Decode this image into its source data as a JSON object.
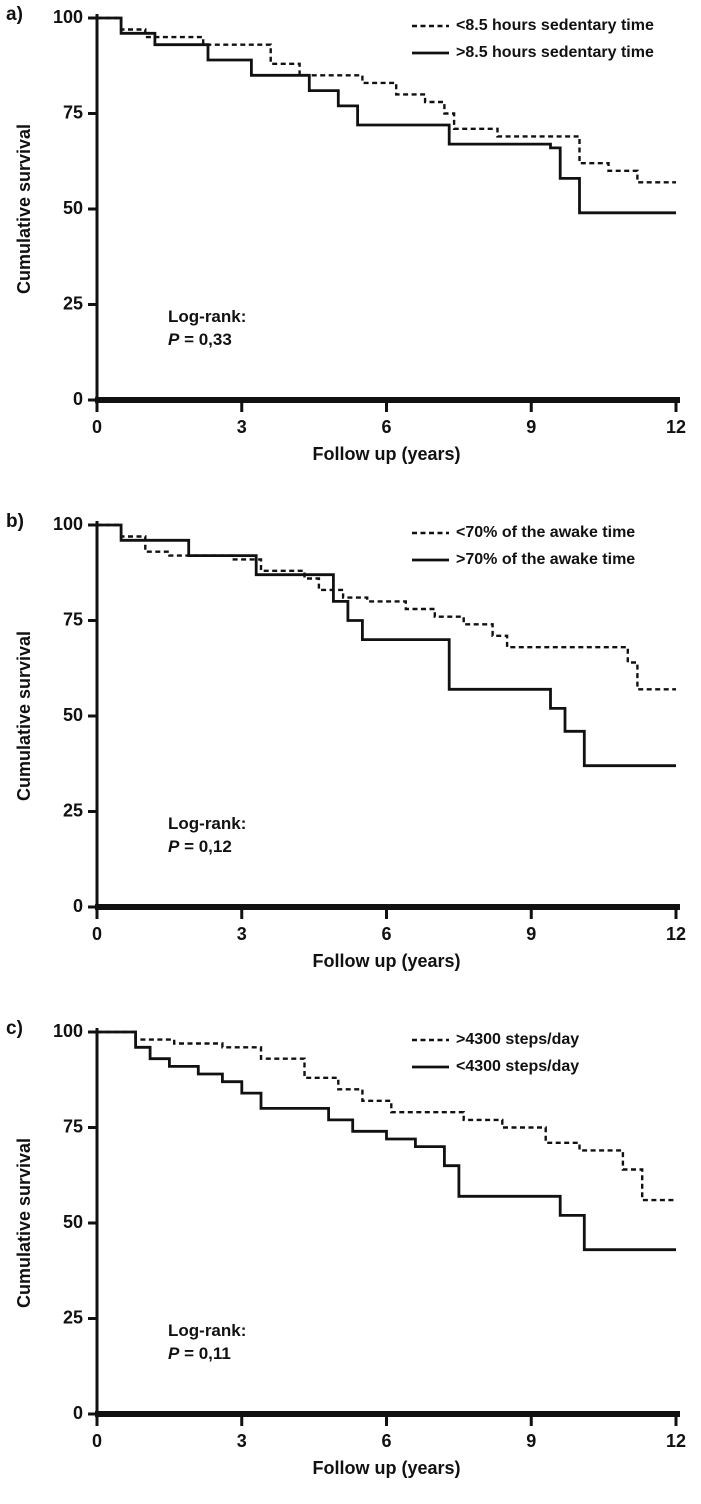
{
  "page": {
    "background": "#ffffff",
    "text_color": "#111111"
  },
  "chart_data": [
    {
      "type": "line",
      "subtype": "kaplan-meier-step",
      "panel_label": "a)",
      "xlabel": "Follow up (years)",
      "ylabel": "Cumulative survival",
      "xlim": [
        0,
        12
      ],
      "ylim": [
        0,
        100
      ],
      "xticks": [
        0,
        3,
        6,
        9,
        12
      ],
      "yticks": [
        0,
        25,
        50,
        75,
        100
      ],
      "grid": false,
      "legend_position": "top-right",
      "annotation": {
        "title": "Log-rank:",
        "p_symbol": "P",
        "p_rest": " = 0,33"
      },
      "series": [
        {
          "name": "<8.5 hours sedentary time",
          "style": "dashed",
          "color": "#111111",
          "points": [
            [
              0,
              100
            ],
            [
              0.5,
              97
            ],
            [
              1.0,
              95
            ],
            [
              2.2,
              93
            ],
            [
              3.6,
              88
            ],
            [
              4.2,
              85
            ],
            [
              5.5,
              83
            ],
            [
              6.2,
              80
            ],
            [
              6.8,
              78
            ],
            [
              7.2,
              75
            ],
            [
              7.4,
              71
            ],
            [
              8.3,
              69
            ],
            [
              10.0,
              62
            ],
            [
              10.6,
              60
            ],
            [
              11.2,
              57
            ],
            [
              12,
              57
            ]
          ]
        },
        {
          "name": ">8.5 hours sedentary time",
          "style": "solid",
          "color": "#111111",
          "points": [
            [
              0,
              100
            ],
            [
              0.5,
              96
            ],
            [
              1.2,
              93
            ],
            [
              2.3,
              89
            ],
            [
              3.2,
              85
            ],
            [
              4.4,
              81
            ],
            [
              5.0,
              77
            ],
            [
              5.4,
              72
            ],
            [
              7.3,
              67
            ],
            [
              9.4,
              66
            ],
            [
              9.6,
              58
            ],
            [
              10.0,
              49
            ],
            [
              12,
              49
            ]
          ]
        }
      ]
    },
    {
      "type": "line",
      "subtype": "kaplan-meier-step",
      "panel_label": "b)",
      "xlabel": "Follow up (years)",
      "ylabel": "Cumulative survival",
      "xlim": [
        0,
        12
      ],
      "ylim": [
        0,
        100
      ],
      "xticks": [
        0,
        3,
        6,
        9,
        12
      ],
      "yticks": [
        0,
        25,
        50,
        75,
        100
      ],
      "grid": false,
      "legend_position": "top-right",
      "annotation": {
        "title": "Log-rank:",
        "p_symbol": "P",
        "p_rest": " = 0,12"
      },
      "series": [
        {
          "name": "<70% of the awake time",
          "style": "dashed",
          "color": "#111111",
          "points": [
            [
              0,
              100
            ],
            [
              0.5,
              97
            ],
            [
              1.0,
              93
            ],
            [
              1.5,
              92
            ],
            [
              2.8,
              91
            ],
            [
              3.4,
              88
            ],
            [
              4.3,
              86
            ],
            [
              4.6,
              83
            ],
            [
              5.1,
              81
            ],
            [
              5.6,
              80
            ],
            [
              6.4,
              78
            ],
            [
              7.0,
              76
            ],
            [
              7.6,
              74
            ],
            [
              8.2,
              71
            ],
            [
              8.5,
              68
            ],
            [
              11.0,
              64
            ],
            [
              11.2,
              57
            ],
            [
              12,
              57
            ]
          ]
        },
        {
          "name": ">70% of the awake time",
          "style": "solid",
          "color": "#111111",
          "points": [
            [
              0,
              100
            ],
            [
              0.5,
              96
            ],
            [
              1.9,
              92
            ],
            [
              3.3,
              87
            ],
            [
              4.9,
              80
            ],
            [
              5.2,
              75
            ],
            [
              5.5,
              70
            ],
            [
              7.3,
              57
            ],
            [
              9.4,
              52
            ],
            [
              9.7,
              46
            ],
            [
              10.1,
              37
            ],
            [
              12,
              37
            ]
          ]
        }
      ]
    },
    {
      "type": "line",
      "subtype": "kaplan-meier-step",
      "panel_label": "c)",
      "xlabel": "Follow up (years)",
      "ylabel": "Cumulative survival",
      "xlim": [
        0,
        12
      ],
      "ylim": [
        0,
        100
      ],
      "xticks": [
        0,
        3,
        6,
        9,
        12
      ],
      "yticks": [
        0,
        25,
        50,
        75,
        100
      ],
      "grid": false,
      "legend_position": "top-right",
      "annotation": {
        "title": "Log-rank:",
        "p_symbol": "P",
        "p_rest": " = 0,11"
      },
      "series": [
        {
          "name": ">4300 steps/day",
          "style": "dashed",
          "color": "#111111",
          "points": [
            [
              0,
              100
            ],
            [
              0.8,
              98
            ],
            [
              1.6,
              97
            ],
            [
              2.6,
              96
            ],
            [
              3.4,
              93
            ],
            [
              4.3,
              88
            ],
            [
              5.0,
              85
            ],
            [
              5.5,
              82
            ],
            [
              6.1,
              79
            ],
            [
              7.6,
              77
            ],
            [
              8.4,
              75
            ],
            [
              9.3,
              71
            ],
            [
              10.0,
              69
            ],
            [
              10.9,
              64
            ],
            [
              11.3,
              56
            ],
            [
              12,
              56
            ]
          ]
        },
        {
          "name": "<4300 steps/day",
          "style": "solid",
          "color": "#111111",
          "points": [
            [
              0,
              100
            ],
            [
              0.8,
              96
            ],
            [
              1.1,
              93
            ],
            [
              1.5,
              91
            ],
            [
              2.1,
              89
            ],
            [
              2.6,
              87
            ],
            [
              3.0,
              84
            ],
            [
              3.4,
              80
            ],
            [
              4.8,
              77
            ],
            [
              5.3,
              74
            ],
            [
              6.0,
              72
            ],
            [
              6.6,
              70
            ],
            [
              7.2,
              65
            ],
            [
              7.5,
              57
            ],
            [
              9.6,
              52
            ],
            [
              10.1,
              43
            ],
            [
              12,
              43
            ]
          ]
        }
      ]
    }
  ]
}
